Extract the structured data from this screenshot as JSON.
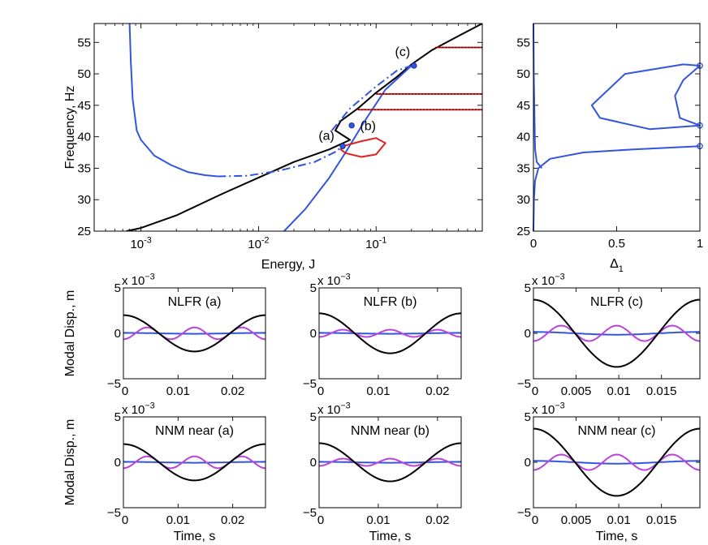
{
  "chart_data": [
    {
      "id": "main",
      "type": "line",
      "xscale": "log",
      "xlabel": "Energy, J",
      "ylabel": "Frequency, Hz",
      "xlim": [
        0.0004,
        0.8
      ],
      "ylim": [
        25,
        58
      ],
      "yticks": [
        25,
        30,
        35,
        40,
        45,
        50,
        55
      ],
      "xticks": [
        {
          "v": 0.001,
          "base": "10",
          "exp": "-3"
        },
        {
          "v": 0.01,
          "base": "10",
          "exp": "-2"
        },
        {
          "v": 0.1,
          "base": "10",
          "exp": "-1"
        }
      ],
      "series": [
        {
          "name": "NNM backbone",
          "color": "#000000",
          "style": "solid",
          "x": [
            0.00075,
            0.001,
            0.002,
            0.005,
            0.01,
            0.02,
            0.04,
            0.06,
            0.045,
            0.05,
            0.07,
            0.1,
            0.15,
            0.2,
            0.3,
            0.5,
            0.8
          ],
          "y": [
            25.0,
            25.5,
            27.5,
            31.0,
            33.5,
            36.0,
            38.0,
            39.5,
            41.0,
            42.5,
            44.5,
            47.0,
            49.5,
            51.5,
            53.8,
            56.0,
            58.0
          ]
        },
        {
          "name": "NLFR branch",
          "color": "#3355dd",
          "style": "solid",
          "x": [
            0.0008,
            0.00082,
            0.00085,
            0.00092,
            0.001,
            0.0013,
            0.0018,
            0.0025,
            0.0035,
            0.0045
          ],
          "y": [
            58.0,
            52.0,
            46.0,
            41.0,
            39.5,
            37.0,
            35.5,
            34.4,
            33.9,
            33.7
          ]
        },
        {
          "name": "NLFR unstable",
          "color": "#3355dd",
          "style": "dashdot",
          "x": [
            0.0045,
            0.008,
            0.015,
            0.03,
            0.045,
            0.052
          ],
          "y": [
            33.7,
            33.8,
            34.6,
            36.0,
            37.6,
            38.5
          ]
        },
        {
          "name": "NLFR unstable upper",
          "color": "#3355dd",
          "style": "dashdot",
          "x": [
            0.042,
            0.06,
            0.1,
            0.15,
            0.2
          ],
          "y": [
            41.0,
            44.5,
            48.0,
            50.5,
            51.3
          ]
        },
        {
          "name": "NLFR lower",
          "color": "#3355dd",
          "style": "solid",
          "x": [
            0.0165,
            0.025,
            0.04,
            0.055,
            0.08,
            0.12,
            0.2
          ],
          "y": [
            25.0,
            28.5,
            33.5,
            37.5,
            42.5,
            47.5,
            51.3
          ]
        },
        {
          "name": "Tongue",
          "color": "#dd2222",
          "style": "solid",
          "x": [
            0.052,
            0.075,
            0.1,
            0.12,
            0.1,
            0.075,
            0.055,
            0.05,
            0.052
          ],
          "y": [
            38.5,
            39.3,
            39.8,
            39.0,
            37.2,
            36.8,
            37.4,
            38.0,
            38.5
          ]
        },
        {
          "name": "Branch 54",
          "color": "#dd2222",
          "style": "solid",
          "x": [
            0.32,
            0.8
          ],
          "y": [
            54.2,
            54.2
          ]
        },
        {
          "name": "Branch 47",
          "color": "#dd2222",
          "style": "solid",
          "x": [
            0.1,
            0.8
          ],
          "y": [
            46.8,
            46.8
          ]
        },
        {
          "name": "Branch 44",
          "color": "#dd2222",
          "style": "solid",
          "x": [
            0.07,
            0.8
          ],
          "y": [
            44.3,
            44.3
          ]
        }
      ],
      "points": [
        {
          "label": "(a)",
          "x": 0.052,
          "y": 38.5
        },
        {
          "label": "(b)",
          "x": 0.062,
          "y": 41.8
        },
        {
          "label": "(c)",
          "x": 0.21,
          "y": 51.3
        }
      ]
    },
    {
      "id": "side",
      "type": "line",
      "xlabel_base": "Δ",
      "xlabel_sub": "1",
      "xlim": [
        0,
        1
      ],
      "ylim": [
        25,
        58
      ],
      "xticks": [
        "0",
        "0.5",
        "1"
      ],
      "yticks": [
        25,
        30,
        35,
        40,
        45,
        50,
        55
      ],
      "series": [
        {
          "name": "Outer",
          "color": "#3355dd",
          "x": [
            0.0,
            0.003,
            0.01,
            0.03,
            0.1,
            0.3,
            0.6,
            1.0
          ],
          "y": [
            25.0,
            30.0,
            33.0,
            35.0,
            36.5,
            37.5,
            38.0,
            38.5
          ]
        },
        {
          "name": "Left branch",
          "color": "#3355dd",
          "x": [
            0.0,
            0.002,
            0.01,
            0.02,
            0.05
          ],
          "y": [
            58.0,
            50.0,
            38.0,
            36.0,
            35.0
          ]
        },
        {
          "name": "Loop",
          "color": "#3355dd",
          "x": [
            1.0,
            0.9,
            0.85,
            0.88,
            1.0,
            0.7,
            0.4,
            0.35,
            0.55,
            0.9,
            1.0
          ],
          "y": [
            51.3,
            49.0,
            46.5,
            43.0,
            41.8,
            41.2,
            43.0,
            45.0,
            50.0,
            51.5,
            51.3
          ]
        }
      ],
      "points": [
        {
          "x": 1.0,
          "y": 38.5
        },
        {
          "x": 1.0,
          "y": 41.8
        },
        {
          "x": 1.0,
          "y": 51.3
        }
      ]
    }
  ],
  "small_panels": [
    {
      "title": "NLFR (a)",
      "xmax": 0.026,
      "xticks": [
        "0",
        "0.01",
        "0.02"
      ],
      "black_amp": 2.0,
      "mag_amp": 0.65,
      "mag_phase": 3.14,
      "blue_amp": 0.05
    },
    {
      "title": "NLFR (b)",
      "xmax": 0.024,
      "xticks": [
        "0",
        "0.01",
        "0.02"
      ],
      "black_amp": 2.2,
      "mag_amp": 0.4,
      "mag_phase": 3.14,
      "blue_amp": 0.05
    },
    {
      "title": "NLFR (c)",
      "xmax": 0.0195,
      "xticks": [
        "0",
        "0.005",
        "0.01",
        "0.015"
      ],
      "black_amp": 3.7,
      "mag_amp": 0.85,
      "mag_phase": 3.14,
      "blue_amp": 0.15
    },
    {
      "title": "NNM near (a)",
      "xmax": 0.026,
      "xticks": [
        "0",
        "0.01",
        "0.02"
      ],
      "black_amp": 2.0,
      "mag_amp": 0.65,
      "mag_phase": 3.14,
      "blue_amp": 0.05
    },
    {
      "title": "NNM near (b)",
      "xmax": 0.024,
      "xticks": [
        "0",
        "0.01",
        "0.02"
      ],
      "black_amp": 2.1,
      "mag_amp": 0.4,
      "mag_phase": 3.14,
      "blue_amp": 0.05
    },
    {
      "title": "NNM near (c)",
      "xmax": 0.0195,
      "xticks": [
        "0",
        "0.005",
        "0.01",
        "0.015"
      ],
      "black_amp": 3.7,
      "mag_amp": 0.85,
      "mag_phase": 3.14,
      "blue_amp": 0.15
    }
  ],
  "small_labels": {
    "ylabel": "Modal Disp., m",
    "xlabel": "Time, s",
    "scale_base": "x 10",
    "scale_exp": "−3",
    "yticks": [
      "−5",
      "0",
      "5"
    ]
  }
}
